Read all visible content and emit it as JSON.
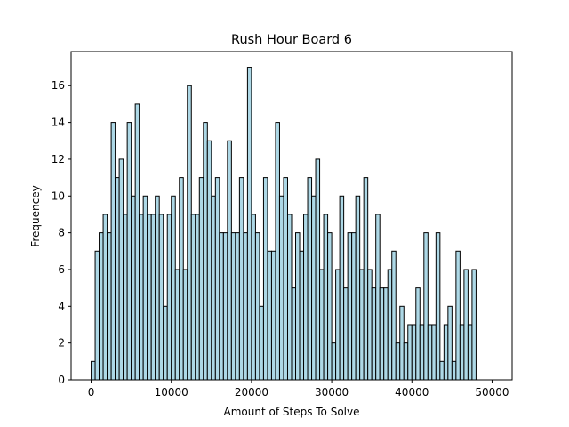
{
  "chart_data": {
    "type": "bar",
    "subtype": "histogram",
    "title": "Rush Hour Board 6",
    "xlabel": "Amount of Steps To Solve",
    "ylabel": "Frequencey",
    "xlim": [
      -2500,
      52500
    ],
    "ylim": [
      0,
      17.85
    ],
    "xticks": [
      0,
      10000,
      20000,
      30000,
      40000,
      50000
    ],
    "yticks": [
      0,
      2,
      4,
      6,
      8,
      10,
      12,
      14,
      16
    ],
    "bin_start": 0,
    "bin_width": 500,
    "grid": false,
    "legend": "none",
    "values": [
      1,
      7,
      8,
      9,
      8,
      14,
      11,
      12,
      9,
      14,
      10,
      15,
      9,
      10,
      9,
      9,
      10,
      9,
      4,
      9,
      10,
      6,
      11,
      6,
      16,
      9,
      9,
      11,
      14,
      13,
      10,
      11,
      8,
      8,
      13,
      8,
      8,
      11,
      8,
      17,
      9,
      8,
      4,
      11,
      7,
      7,
      14,
      10,
      11,
      9,
      5,
      8,
      7,
      9,
      11,
      10,
      12,
      6,
      9,
      8,
      2,
      6,
      10,
      5,
      8,
      8,
      10,
      6,
      11,
      6,
      5,
      9,
      5,
      5,
      6,
      7,
      2,
      4,
      2,
      3,
      3,
      5,
      3,
      8,
      3,
      3,
      8,
      1,
      3,
      4,
      1,
      7,
      3,
      6,
      3,
      6
    ],
    "colors": {
      "bar_fill": "#add8e6",
      "bar_edge": "#000000",
      "axes": "#000000",
      "background": "#ffffff"
    }
  }
}
